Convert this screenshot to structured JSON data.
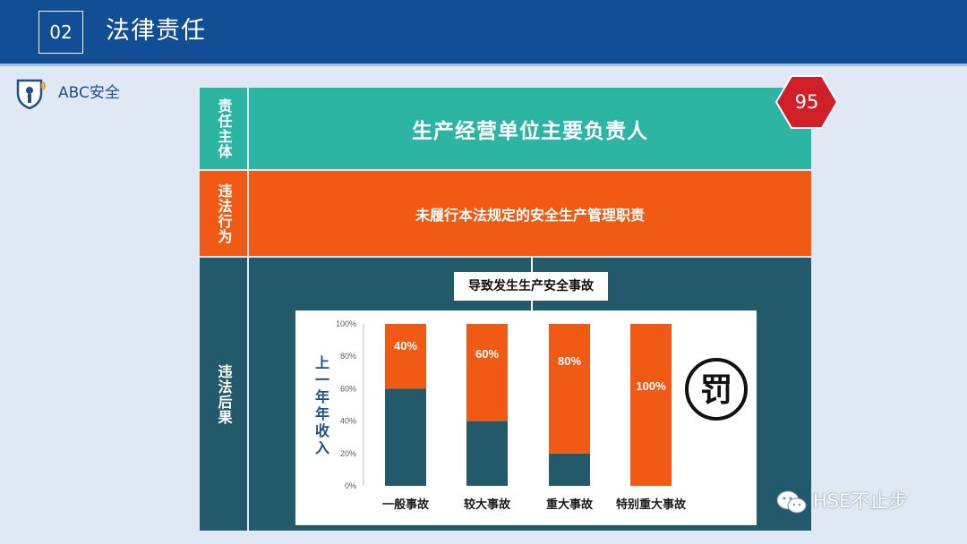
{
  "header": {
    "section_number": "02",
    "title": "法律责任"
  },
  "logo": {
    "text": "ABC安全"
  },
  "page_number": "95",
  "table": {
    "subject_label": "责任主体",
    "subject_value": "生产经营单位主要负责人",
    "action_label": "违法行为",
    "action_value": "未履行本法规定的安全生产管理职责",
    "result_label": "违法后果",
    "result_caption": "导致发生生产安全事故"
  },
  "chart_data": {
    "type": "bar",
    "stacked": true,
    "ylabel": "上一年年收入",
    "ylim": [
      0,
      100
    ],
    "yticks": [
      "0%",
      "20%",
      "40%",
      "60%",
      "80%",
      "100%"
    ],
    "categories": [
      "一般事故",
      "较大事故",
      "重大事故",
      "特别重大事故"
    ],
    "series": [
      {
        "values": [
          60,
          40,
          20,
          0
        ],
        "color": "#235a6b"
      },
      {
        "values": [
          40,
          60,
          80,
          100
        ],
        "color": "#f05a14"
      }
    ],
    "data_labels": [
      "40%",
      "60%",
      "80%",
      "100%"
    ],
    "grid": false,
    "stamp_text": "罚"
  },
  "watermark": {
    "text": "HSE不止步"
  },
  "colors": {
    "header_bg": "#124e94",
    "teal": "#2cb5a3",
    "orange": "#f05a14",
    "dark_teal": "#235a6b",
    "hexagon": "#cf1f27"
  }
}
